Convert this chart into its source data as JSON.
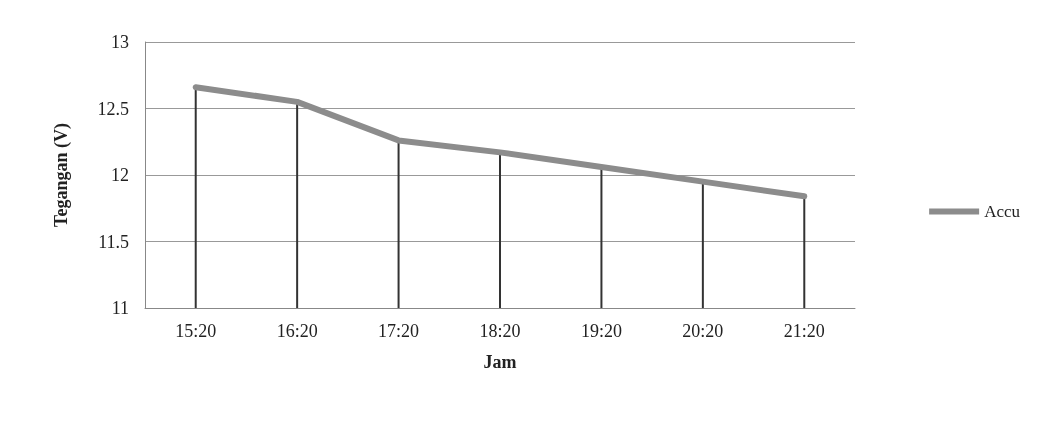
{
  "chart_data": {
    "type": "line",
    "xlabel": "Jam",
    "ylabel": "Tegangan (V)",
    "categories": [
      "15:20",
      "16:20",
      "17:20",
      "18:20",
      "19:20",
      "20:20",
      "21:20"
    ],
    "series": [
      {
        "name": "Accu",
        "color": "#8c8c8c",
        "values": [
          12.66,
          12.55,
          12.26,
          12.17,
          12.06,
          11.95,
          11.84
        ]
      },
      {
        "type": "bar",
        "color": "#333333",
        "values": [
          12.66,
          12.55,
          12.26,
          12.17,
          12.06,
          11.95,
          11.84
        ]
      }
    ],
    "ylim": [
      11,
      13
    ],
    "yticks": [
      11,
      11.5,
      12,
      12.5,
      13
    ],
    "grid": "y",
    "legend": "right",
    "marker": "none",
    "line_style": "solid"
  }
}
